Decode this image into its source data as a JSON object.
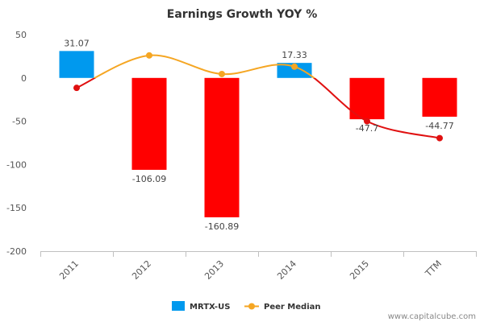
{
  "chart_data": {
    "type": "bar",
    "title": "Earnings Growth YOY %",
    "categories": [
      "2011",
      "2012",
      "2013",
      "2014",
      "2015",
      "TTM"
    ],
    "series": [
      {
        "name": "MRTX-US",
        "kind": "bar",
        "values": [
          31.07,
          -106.09,
          -160.89,
          17.33,
          -47.7,
          -44.77
        ],
        "labels": [
          "31.07",
          "-106.09",
          "-160.89",
          "17.33",
          "-47.7",
          "-44.77"
        ],
        "positive_color": "#0099ee",
        "negative_color": "#ff0000"
      },
      {
        "name": "Peer Median",
        "kind": "line",
        "values": [
          -11.5,
          26,
          4.5,
          13,
          -50,
          -69.5
        ],
        "color": "#f5a623",
        "negative_color": "#e01010"
      }
    ],
    "ylim": [
      -200,
      50
    ],
    "yticks": [
      50,
      0,
      -50,
      -100,
      -150,
      -200
    ],
    "grid": false,
    "legend": "bottom"
  },
  "source": "www.capitalcube.com"
}
